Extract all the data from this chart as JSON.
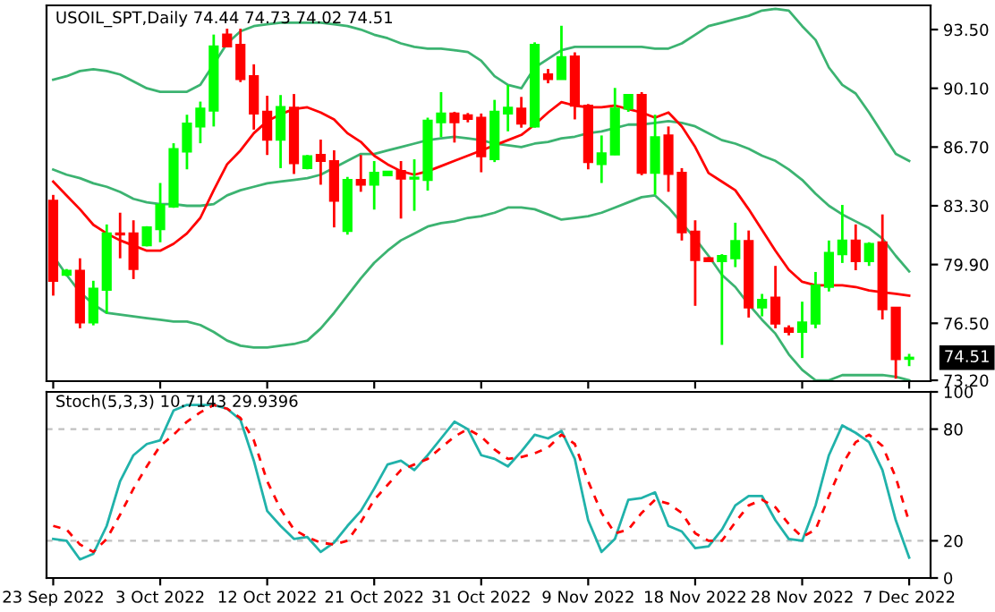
{
  "chart_data": [
    {
      "type": "candlestick",
      "title": "USOIL_SPT,Daily 74.44 74.73 74.02 74.51",
      "ohlc": [
        [
          83.59,
          83.93,
          78.1,
          78.96
        ],
        [
          79.3,
          79.64,
          79.23,
          79.54
        ],
        [
          79.54,
          80.26,
          76.21,
          76.55
        ],
        [
          76.55,
          78.96,
          76.38,
          78.51
        ],
        [
          78.44,
          82.22,
          77.07,
          81.7
        ],
        [
          81.7,
          82.9,
          80.26,
          81.64
        ],
        [
          81.7,
          82.46,
          79.06,
          79.64
        ],
        [
          81.02,
          82.12,
          80.95,
          82.05
        ],
        [
          81.94,
          84.62,
          81.19,
          83.35
        ],
        [
          83.25,
          86.92,
          83.18,
          86.58
        ],
        [
          86.44,
          88.57,
          85.41,
          88.06
        ],
        [
          87.89,
          89.33,
          86.92,
          88.92
        ],
        [
          88.81,
          93.21,
          87.89,
          92.52
        ],
        [
          93.21,
          93.55,
          92.52,
          92.52
        ],
        [
          92.62,
          93.55,
          90.46,
          90.63
        ],
        [
          90.8,
          91.49,
          87.71,
          88.64
        ],
        [
          88.74,
          89.67,
          86.24,
          87.13
        ],
        [
          87.13,
          89.71,
          85.48,
          89.02
        ],
        [
          88.98,
          89.77,
          85.14,
          85.76
        ],
        [
          85.48,
          86.24,
          85.41,
          86.17
        ],
        [
          86.24,
          87.13,
          84.52,
          85.89
        ],
        [
          85.89,
          86.51,
          82.05,
          83.59
        ],
        [
          81.84,
          84.97,
          81.63,
          84.8
        ],
        [
          84.8,
          86.24,
          84.11,
          84.52
        ],
        [
          84.52,
          85.89,
          83.08,
          85.21
        ],
        [
          85.07,
          85.28,
          85.07,
          85.28
        ],
        [
          85.31,
          85.89,
          82.56,
          84.87
        ],
        [
          84.87,
          85.99,
          83.01,
          84.93
        ],
        [
          84.8,
          88.4,
          84.18,
          88.23
        ],
        [
          88.13,
          89.88,
          87.27,
          88.64
        ],
        [
          88.64,
          88.74,
          86.96,
          88.13
        ],
        [
          88.54,
          88.67,
          88.13,
          88.33
        ],
        [
          88.4,
          88.64,
          85.24,
          86.17
        ],
        [
          86.0,
          89.43,
          85.83,
          88.74
        ],
        [
          88.64,
          90.29,
          87.61,
          88.98
        ],
        [
          88.92,
          89.6,
          87.82,
          88.06
        ],
        [
          87.89,
          92.76,
          87.82,
          92.62
        ],
        [
          90.91,
          91.22,
          90.39,
          90.63
        ],
        [
          90.63,
          93.72,
          90.63,
          91.9
        ],
        [
          91.94,
          92.18,
          88.3,
          89.09
        ],
        [
          89.09,
          89.19,
          85.41,
          85.83
        ],
        [
          85.72,
          87.37,
          84.62,
          86.34
        ],
        [
          86.27,
          90.12,
          86.24,
          88.92
        ],
        [
          88.92,
          89.77,
          88.74,
          89.71
        ],
        [
          89.71,
          89.88,
          85.07,
          85.21
        ],
        [
          85.21,
          88.57,
          83.94,
          87.27
        ],
        [
          87.37,
          87.89,
          84.11,
          85.14
        ],
        [
          85.21,
          85.48,
          81.29,
          81.77
        ],
        [
          81.81,
          82.46,
          77.51,
          80.16
        ],
        [
          80.26,
          80.33,
          80.09,
          80.09
        ],
        [
          80.09,
          80.5,
          75.25,
          80.4
        ],
        [
          80.26,
          82.32,
          79.75,
          81.26
        ],
        [
          81.26,
          81.87,
          76.83,
          77.41
        ],
        [
          77.41,
          78.2,
          76.9,
          77.86
        ],
        [
          77.99,
          79.82,
          76.21,
          76.48
        ],
        [
          76.21,
          76.38,
          75.8,
          76.0
        ],
        [
          76.0,
          77.75,
          74.49,
          76.55
        ],
        [
          76.48,
          79.47,
          76.21,
          78.68
        ],
        [
          78.61,
          81.29,
          78.34,
          80.57
        ],
        [
          80.5,
          83.35,
          79.99,
          81.29
        ],
        [
          81.29,
          82.22,
          79.57,
          80.09
        ],
        [
          80.09,
          81.19,
          79.82,
          81.09
        ],
        [
          81.19,
          82.8,
          76.72,
          77.31
        ],
        [
          77.41,
          77.41,
          73.29,
          74.42
        ],
        [
          74.44,
          74.73,
          74.02,
          74.51
        ]
      ],
      "colors": [
        "#ff0000",
        "#00ff00",
        "#ff0000",
        "#00ff00",
        "#00ff00",
        "#ff0000",
        "#ff0000",
        "#00ff00",
        "#00ff00",
        "#00ff00",
        "#00ff00",
        "#00ff00",
        "#00ff00",
        "#ff0000",
        "#ff0000",
        "#ff0000",
        "#ff0000",
        "#00ff00",
        "#ff0000",
        "#00ff00",
        "#ff0000",
        "#ff0000",
        "#00ff00",
        "#ff0000",
        "#00ff00",
        "#00ff00",
        "#ff0000",
        "#00ff00",
        "#00ff00",
        "#00ff00",
        "#ff0000",
        "#ff0000",
        "#ff0000",
        "#00ff00",
        "#00ff00",
        "#ff0000",
        "#00ff00",
        "#ff0000",
        "#00ff00",
        "#ff0000",
        "#ff0000",
        "#00ff00",
        "#00ff00",
        "#00ff00",
        "#ff0000",
        "#00ff00",
        "#ff0000",
        "#ff0000",
        "#ff0000",
        "#ff0000",
        "#00ff00",
        "#00ff00",
        "#ff0000",
        "#00ff00",
        "#ff0000",
        "#ff0000",
        "#00ff00",
        "#00ff00",
        "#00ff00",
        "#00ff00",
        "#ff0000",
        "#00ff00",
        "#ff0000",
        "#ff0000",
        "#00ff00"
      ],
      "series": [
        {
          "type": "line",
          "color": "#3cb371",
          "values": [
            90.6,
            90.8,
            91.1,
            91.2,
            91.1,
            90.9,
            90.5,
            90.1,
            89.9,
            89.9,
            89.9,
            90.3,
            91.5,
            92.7,
            93.4,
            93.7,
            93.8,
            93.9,
            93.9,
            93.9,
            93.9,
            93.8,
            93.7,
            93.5,
            93.2,
            93.0,
            92.7,
            92.5,
            92.4,
            92.4,
            92.3,
            92.2,
            91.7,
            90.8,
            90.3,
            90.1,
            91.3,
            91.8,
            92.3,
            92.5,
            92.5,
            92.5,
            92.5,
            92.5,
            92.5,
            92.4,
            92.4,
            92.7,
            93.2,
            93.7,
            93.9,
            94.1,
            94.3,
            94.6,
            94.7,
            94.6,
            93.7,
            92.9,
            91.3,
            90.3,
            89.8,
            88.7,
            87.5,
            86.3,
            85.9
          ]
        },
        {
          "type": "line",
          "color": "#3cb371",
          "values": [
            85.4,
            85.1,
            84.9,
            84.6,
            84.4,
            84.1,
            83.7,
            83.5,
            83.4,
            83.4,
            83.3,
            83.3,
            83.4,
            83.9,
            84.2,
            84.4,
            84.6,
            84.7,
            84.8,
            84.9,
            85.1,
            85.5,
            85.9,
            86.3,
            86.3,
            86.5,
            86.7,
            86.9,
            87.1,
            87.2,
            87.3,
            87.2,
            87.1,
            86.9,
            86.8,
            86.7,
            86.9,
            87.0,
            87.2,
            87.3,
            87.5,
            87.6,
            87.8,
            88.0,
            88.0,
            88.1,
            88.2,
            88.1,
            87.9,
            87.5,
            87.1,
            86.9,
            86.6,
            86.2,
            85.9,
            85.4,
            84.8,
            84.0,
            83.3,
            82.8,
            82.4,
            82.0,
            81.4,
            80.4,
            79.5
          ]
        },
        {
          "type": "line",
          "color": "#3cb371",
          "values": [
            80.4,
            79.3,
            78.3,
            77.6,
            77.1,
            77.0,
            76.9,
            76.8,
            76.7,
            76.6,
            76.6,
            76.4,
            76.0,
            75.5,
            75.2,
            75.1,
            75.1,
            75.2,
            75.3,
            75.5,
            76.2,
            77.1,
            78.1,
            79.1,
            80.0,
            80.7,
            81.3,
            81.7,
            82.1,
            82.3,
            82.4,
            82.6,
            82.7,
            82.9,
            83.2,
            83.2,
            83.1,
            82.8,
            82.5,
            82.6,
            82.7,
            82.9,
            83.2,
            83.5,
            83.8,
            83.9,
            83.2,
            82.3,
            81.4,
            80.4,
            79.3,
            78.6,
            77.6,
            76.7,
            75.9,
            74.7,
            73.8,
            73.2,
            73.2,
            73.5,
            73.5,
            73.5,
            73.5,
            73.4,
            73.2
          ]
        },
        {
          "type": "line",
          "color": "#ff0000",
          "values": [
            84.7,
            83.9,
            83.1,
            82.2,
            81.7,
            81.3,
            81.0,
            80.7,
            80.7,
            81.1,
            81.7,
            82.6,
            84.2,
            85.7,
            86.5,
            87.5,
            88.2,
            88.6,
            88.9,
            89.0,
            88.7,
            88.3,
            87.5,
            87.0,
            86.2,
            85.7,
            85.3,
            85.1,
            85.3,
            85.6,
            85.9,
            86.2,
            86.5,
            86.8,
            87.1,
            87.4,
            88.0,
            88.7,
            89.3,
            89.1,
            89.0,
            89.0,
            89.1,
            88.9,
            88.7,
            88.4,
            88.7,
            87.9,
            86.7,
            85.2,
            84.7,
            84.2,
            83.1,
            81.9,
            80.7,
            79.6,
            78.9,
            78.7,
            78.7,
            78.7,
            78.6,
            78.4,
            78.3,
            78.2,
            78.1
          ]
        }
      ],
      "ylim": [
        73.15,
        94.9
      ],
      "yticks": [
        {
          "value": 93.5,
          "label": "93.50"
        },
        {
          "value": 90.1,
          "label": "90.10"
        },
        {
          "value": 86.7,
          "label": "86.70"
        },
        {
          "value": 83.3,
          "label": "83.30"
        },
        {
          "value": 79.9,
          "label": "79.90"
        },
        {
          "value": 76.5,
          "label": "76.50"
        },
        {
          "value": 73.2,
          "label": "73.20"
        }
      ],
      "tick_labels": "y",
      "annotations": [
        "74.51"
      ]
    },
    {
      "type": "line",
      "title": "Stoch(5,3,3) 10.7143 29.9396",
      "categories": [
        "23 Sep 2022",
        null,
        null,
        null,
        null,
        null,
        null,
        null,
        "3 Oct 2022",
        null,
        null,
        null,
        null,
        null,
        null,
        null,
        "12 Oct 2022",
        null,
        null,
        null,
        null,
        null,
        null,
        null,
        "21 Oct 2022",
        null,
        null,
        null,
        null,
        null,
        null,
        null,
        "31 Oct 2022",
        null,
        null,
        null,
        null,
        null,
        null,
        null,
        "9 Nov 2022",
        null,
        null,
        null,
        null,
        null,
        null,
        null,
        "18 Nov 2022",
        null,
        null,
        null,
        null,
        null,
        null,
        null,
        "28 Nov 2022",
        null,
        null,
        null,
        null,
        null,
        null,
        null,
        "7 Dec 2022"
      ],
      "series": [
        {
          "color": "#20b2aa",
          "line_style": "solid",
          "values": [
            21,
            20,
            10,
            13,
            28,
            52,
            66,
            72,
            74,
            90,
            93,
            93,
            93,
            91,
            85,
            63,
            36,
            28,
            21,
            22,
            14,
            19,
            28,
            36,
            48,
            61,
            63,
            58,
            66,
            75,
            84,
            80,
            66,
            64,
            60,
            68,
            77,
            75,
            79,
            64,
            31,
            14,
            21,
            42,
            43,
            46,
            28,
            25,
            16,
            17,
            26,
            39,
            44,
            44,
            31,
            21,
            20,
            39,
            66,
            82,
            78,
            73,
            58,
            31,
            11
          ]
        },
        {
          "color": "#ff0000",
          "line_style": "dashed",
          "values": [
            28,
            26,
            18,
            14,
            21,
            34,
            48,
            60,
            71,
            77,
            84,
            89,
            93,
            91,
            86,
            74,
            52,
            37,
            26,
            22,
            19,
            18,
            20,
            30,
            42,
            50,
            58,
            61,
            64,
            70,
            76,
            80,
            76,
            69,
            64,
            65,
            67,
            70,
            77,
            72,
            52,
            35,
            24,
            26,
            35,
            42,
            40,
            35,
            24,
            20,
            20,
            30,
            39,
            42,
            38,
            29,
            22,
            26,
            44,
            61,
            73,
            77,
            71,
            54,
            30
          ]
        }
      ],
      "ylim": [
        0,
        100
      ],
      "yticks": [
        0,
        20,
        80,
        100
      ],
      "ref_lines": [
        {
          "axis": "y",
          "value": 20,
          "color": "#c0c0c0",
          "line_style": "dashed"
        },
        {
          "axis": "y",
          "value": 80,
          "color": "#c0c0c0",
          "line_style": "dashed"
        }
      ]
    }
  ]
}
